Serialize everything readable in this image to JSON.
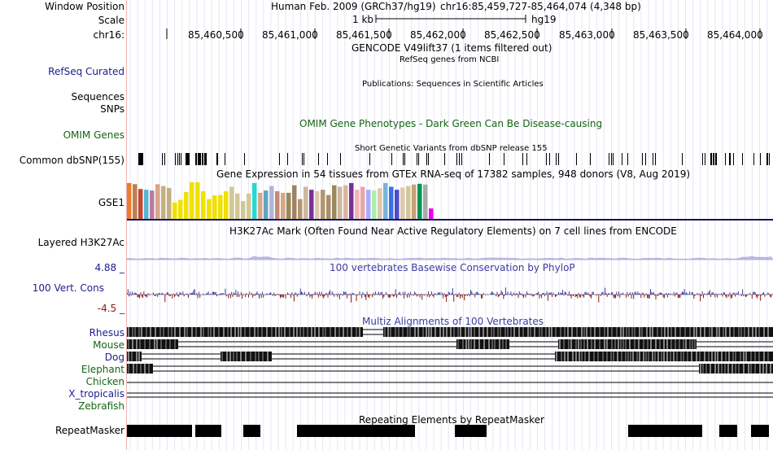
{
  "labels": {
    "window_position": "Window Position",
    "scale": "Scale",
    "chrom": "chr16:",
    "refseq": "RefSeq Curated",
    "sequences": "Sequences",
    "snps": "SNPs",
    "omim": "OMIM Genes",
    "dbsnp": "Common dbSNP(155)",
    "gse": "GSE1",
    "h3k27ac": "Layered H3K27Ac",
    "cons_max": "4.88 _",
    "cons_name": "100 Vert. Cons",
    "cons_min": "-4.5 _",
    "repeatmasker": "RepeatMasker"
  },
  "species": [
    {
      "name": "Rhesus",
      "color": "#1d1d8c"
    },
    {
      "name": "Mouse",
      "color": "#146414"
    },
    {
      "name": "Dog",
      "color": "#1d1d8c"
    },
    {
      "name": "Elephant",
      "color": "#146414"
    },
    {
      "name": "Chicken",
      "color": "#146414"
    },
    {
      "name": "X_tropicalis",
      "color": "#1d1d8c"
    },
    {
      "name": "Zebrafish",
      "color": "#146414"
    }
  ],
  "header": {
    "assembly": "Human Feb. 2009 (GRCh37/hg19)",
    "position": "chr16:85,459,727-85,464,074 (4,348 bp)",
    "scale_label": "1 kb",
    "scale_db": "hg19"
  },
  "ruler_ticks": [
    "85,460,500",
    "85,461,000",
    "85,461,500",
    "85,462,000",
    "85,462,500",
    "85,463,000",
    "85,463,500",
    "85,464,000"
  ],
  "tracks": {
    "gencode": "GENCODE V49lift37 (1 items filtered out)",
    "refseq": "RefSeq genes from NCBI",
    "publications": "Publications: Sequences in Scientific Articles",
    "omim": "OMIM Gene Phenotypes - Dark Green Can Be Disease-causing",
    "dbsnp": "Short Genetic Variants from dbSNP release 155",
    "gtex": "Gene Expression in 54 tissues from GTEx RNA-seq of 17382 samples, 948 donors (V8, Aug 2019)",
    "h3k27ac": "H3K27Ac Mark (Often Found Near Active Regulatory Elements) on 7 cell lines from ENCODE",
    "phylop": "100 vertebrates Basewise Conservation by PhyloP",
    "multiz": "Multiz Alignments of 100 Vertebrates",
    "repeatmasker": "Repeating Elements by RepeatMasker"
  },
  "colors": {
    "left_label_blue": "#1d1d8c",
    "left_label_green": "#146414",
    "track_blue": "#3c3ca0",
    "omim_green": "#146414",
    "cons_neg": "#8c1414",
    "gtex_line": "#14146e"
  },
  "gtex_values": [
    0.98,
    0.95,
    0.82,
    0.8,
    0.78,
    0.95,
    0.9,
    0.85,
    0.46,
    0.53,
    0.74,
    1.0,
    1.0,
    0.76,
    0.55,
    0.65,
    0.66,
    0.76,
    0.88,
    0.7,
    0.5,
    0.7,
    0.98,
    0.72,
    0.78,
    0.9,
    0.76,
    0.72,
    0.72,
    0.92,
    0.55,
    0.88,
    0.8,
    0.76,
    0.8,
    0.66,
    0.92,
    0.88,
    0.92,
    0.98,
    0.8,
    0.88,
    0.8,
    0.78,
    0.84,
    0.98,
    0.88,
    0.8,
    0.86,
    0.9,
    0.94,
    0.96,
    0.94,
    0.3
  ],
  "gtex_colors": [
    "#ee7b2b",
    "#bf7f50",
    "#c34934",
    "#57b3d1",
    "#bd7aa0",
    "#d7a78a",
    "#c3b07e",
    "#c3b07e",
    "#f0e100",
    "#f0e100",
    "#f0e100",
    "#f0e100",
    "#f0e100",
    "#f0e100",
    "#f0e100",
    "#f0e100",
    "#f0e100",
    "#f0e100",
    "#d2c896",
    "#d2c896",
    "#d2c896",
    "#d2c896",
    "#28d7d2",
    "#d7a78a",
    "#64a3c3",
    "#b4b4d7",
    "#c38c73",
    "#d7a78a",
    "#99895a",
    "#a08264",
    "#b4966e",
    "#cdb7a0",
    "#78309a",
    "#dcc8ae",
    "#b4966e",
    "#aa8f6c",
    "#99895a",
    "#cdb7a0",
    "#dcb4a0",
    "#78309a",
    "#f5b4b4",
    "#eba6a6",
    "#aaaaff",
    "#aaeeaa",
    "#dcc8ae",
    "#78b4d7",
    "#3c6ee6",
    "#4b4bc8",
    "#dcc8ae",
    "#d2c896",
    "#c8a078",
    "#009650",
    "#aaaaaa",
    "#ee00ee"
  ]
}
